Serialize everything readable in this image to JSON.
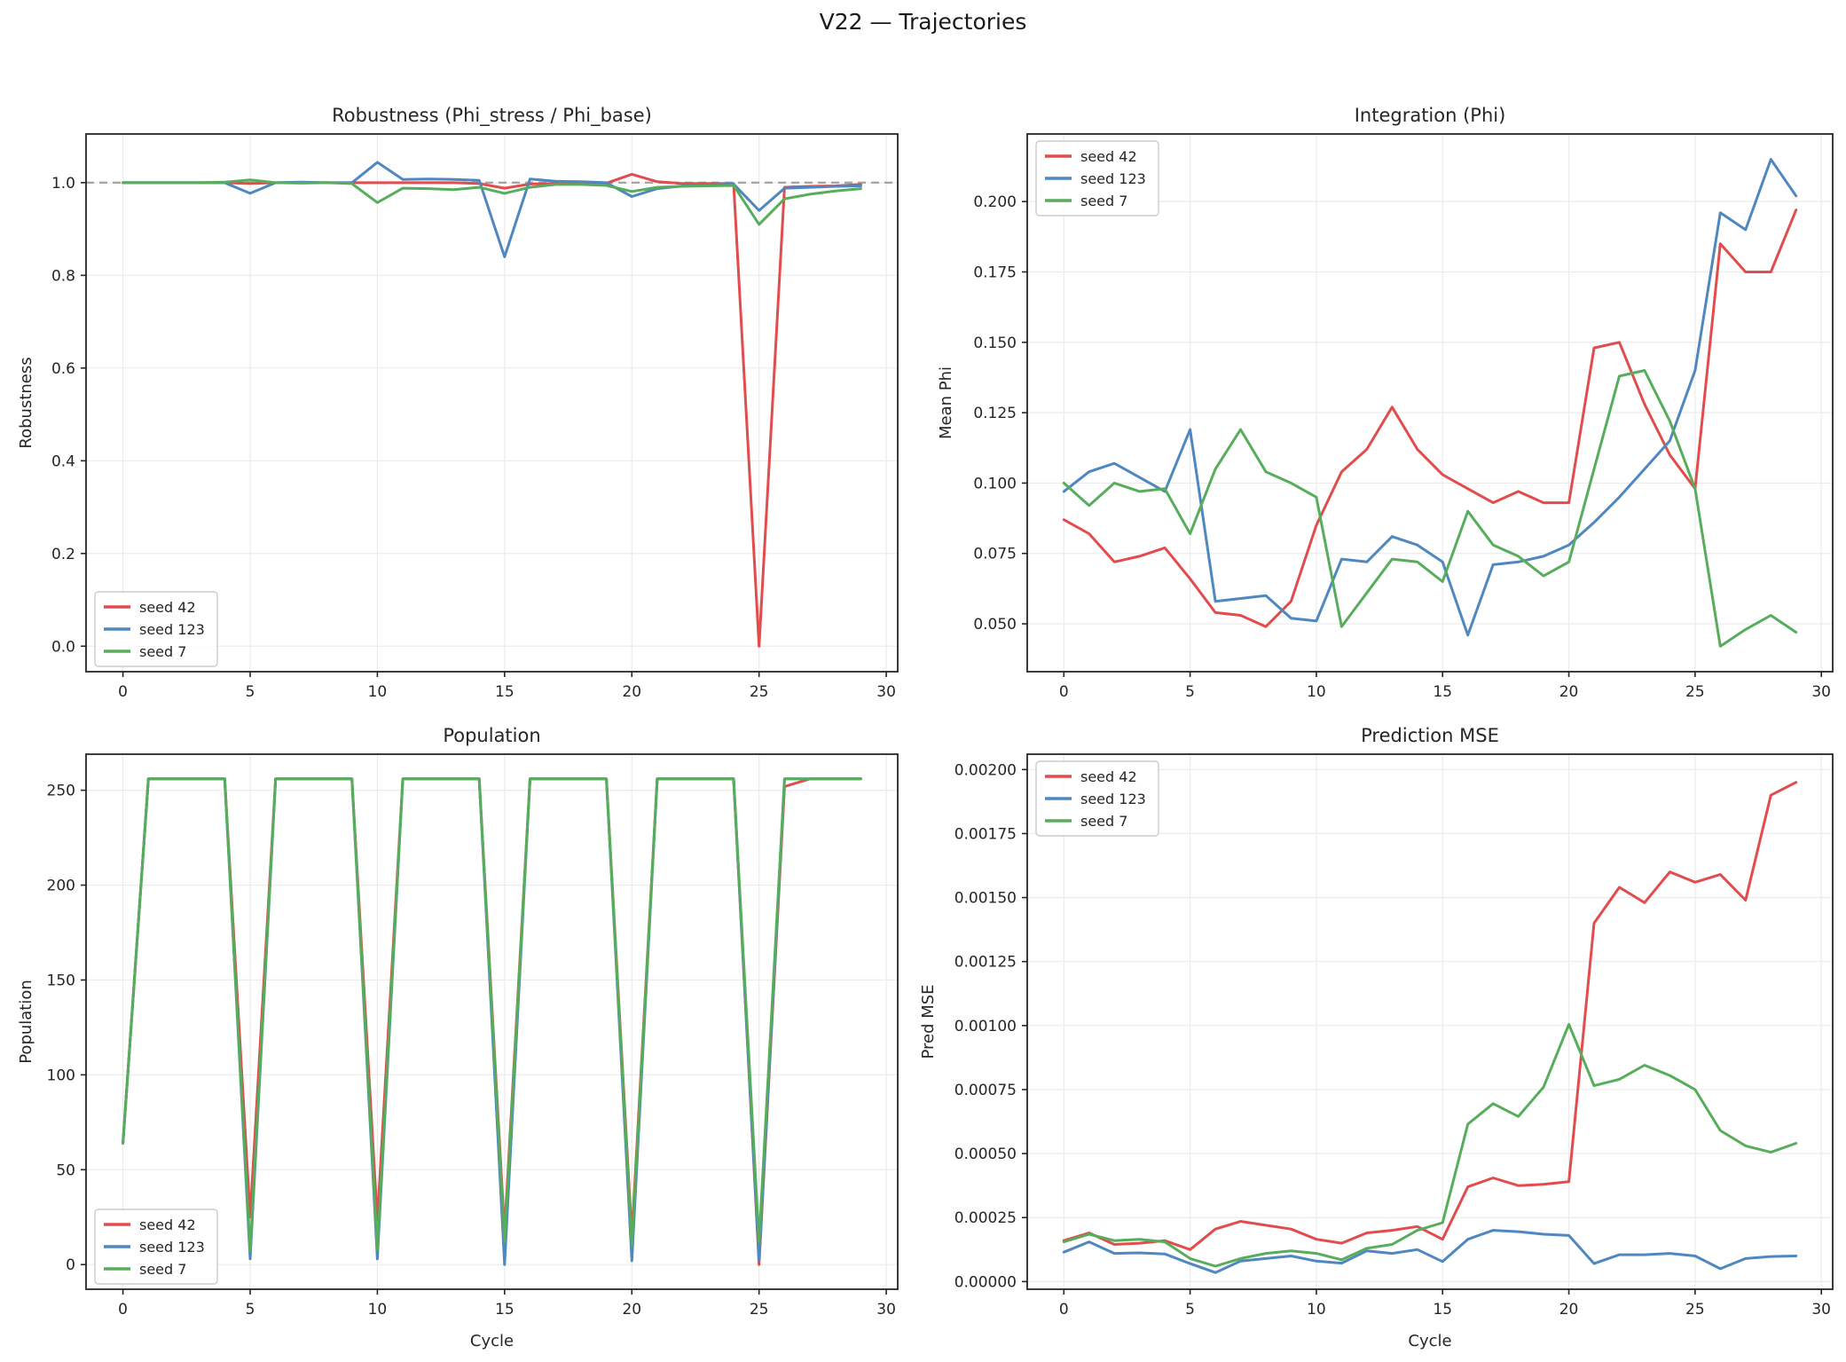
{
  "figure": {
    "title": "V22 — Trajectories"
  },
  "colors": {
    "series": [
      "#e24c4c",
      "#4f87c1",
      "#57ad5b"
    ],
    "ref_dashed": "#a6a6a6",
    "grid": "#ebebeb",
    "spine": "#262626",
    "tick": "#262626",
    "legend_border": "#cccccc"
  },
  "legend_labels": [
    "seed 42",
    "seed 123",
    "seed 7"
  ],
  "chart_data": [
    {
      "type": "line",
      "title": "Robustness (Phi_stress / Phi_base)",
      "xlabel": "",
      "ylabel": "Robustness",
      "x": [
        0,
        1,
        2,
        3,
        4,
        5,
        6,
        7,
        8,
        9,
        10,
        11,
        12,
        13,
        14,
        15,
        16,
        17,
        18,
        19,
        20,
        21,
        22,
        23,
        24,
        25,
        26,
        27,
        28,
        29
      ],
      "xticks": [
        0,
        5,
        10,
        15,
        20,
        25,
        30
      ],
      "xlim": [
        -1.45,
        30.45
      ],
      "yticks": [
        0.0,
        0.2,
        0.4,
        0.6,
        0.8,
        1.0
      ],
      "ytick_decimals": 1,
      "ylim": [
        -0.055,
        1.105
      ],
      "grid": true,
      "legend_position": "lower-left",
      "ref_line_y": 1.0,
      "series": [
        {
          "name": "seed 42",
          "values": [
            1.0,
            1.0,
            1.0,
            1.0,
            1.0,
            0.998,
            1.0,
            1.0,
            1.0,
            1.0,
            1.0,
            1.0,
            1.0,
            1.0,
            0.998,
            0.988,
            0.997,
            0.998,
            0.998,
            0.999,
            1.018,
            1.002,
            0.998,
            0.998,
            0.998,
            0.0,
            0.99,
            0.992,
            0.993,
            0.996
          ]
        },
        {
          "name": "seed 123",
          "values": [
            1.0,
            1.0,
            1.0,
            1.0,
            1.0,
            0.977,
            1.0,
            1.001,
            1.0,
            1.0,
            1.044,
            1.007,
            1.008,
            1.007,
            1.005,
            0.84,
            1.008,
            1.003,
            1.002,
            1.0,
            0.97,
            0.987,
            0.993,
            0.995,
            0.997,
            0.94,
            0.988,
            0.99,
            0.992,
            0.993
          ]
        },
        {
          "name": "seed 7",
          "values": [
            1.0,
            1.0,
            1.0,
            1.0,
            1.001,
            1.006,
            1.0,
            0.999,
            1.0,
            0.998,
            0.957,
            0.988,
            0.987,
            0.985,
            0.99,
            0.977,
            0.99,
            0.996,
            0.996,
            0.994,
            0.981,
            0.99,
            0.992,
            0.993,
            0.994,
            0.91,
            0.965,
            0.975,
            0.982,
            0.987
          ]
        }
      ]
    },
    {
      "type": "line",
      "title": "Integration (Phi)",
      "xlabel": "",
      "ylabel": "Mean Phi",
      "x": [
        0,
        1,
        2,
        3,
        4,
        5,
        6,
        7,
        8,
        9,
        10,
        11,
        12,
        13,
        14,
        15,
        16,
        17,
        18,
        19,
        20,
        21,
        22,
        23,
        24,
        25,
        26,
        27,
        28,
        29
      ],
      "xticks": [
        0,
        5,
        10,
        15,
        20,
        25,
        30
      ],
      "xlim": [
        -1.45,
        30.45
      ],
      "yticks": [
        0.05,
        0.075,
        0.1,
        0.125,
        0.15,
        0.175,
        0.2
      ],
      "ytick_decimals": 3,
      "ylim": [
        0.033,
        0.224
      ],
      "grid": true,
      "legend_position": "upper-left",
      "ref_line_y": null,
      "series": [
        {
          "name": "seed 42",
          "values": [
            0.087,
            0.082,
            0.072,
            0.074,
            0.077,
            0.066,
            0.054,
            0.053,
            0.049,
            0.058,
            0.085,
            0.104,
            0.112,
            0.127,
            0.112,
            0.103,
            0.098,
            0.093,
            0.097,
            0.093,
            0.093,
            0.148,
            0.15,
            0.128,
            0.11,
            0.098,
            0.185,
            0.175,
            0.175,
            0.197
          ]
        },
        {
          "name": "seed 123",
          "values": [
            0.097,
            0.104,
            0.107,
            0.102,
            0.097,
            0.119,
            0.058,
            0.059,
            0.06,
            0.052,
            0.051,
            0.073,
            0.072,
            0.081,
            0.078,
            0.072,
            0.046,
            0.071,
            0.072,
            0.074,
            0.078,
            0.086,
            0.095,
            0.105,
            0.115,
            0.14,
            0.196,
            0.19,
            0.215,
            0.202
          ]
        },
        {
          "name": "seed 7",
          "values": [
            0.1,
            0.092,
            0.1,
            0.097,
            0.098,
            0.082,
            0.105,
            0.119,
            0.104,
            0.1,
            0.095,
            0.049,
            0.061,
            0.073,
            0.072,
            0.065,
            0.09,
            0.078,
            0.074,
            0.067,
            0.072,
            0.105,
            0.138,
            0.14,
            0.122,
            0.098,
            0.042,
            0.048,
            0.053,
            0.047
          ]
        }
      ]
    },
    {
      "type": "line",
      "title": "Population",
      "xlabel": "Cycle",
      "ylabel": "Population",
      "x": [
        0,
        1,
        2,
        3,
        4,
        5,
        6,
        7,
        8,
        9,
        10,
        11,
        12,
        13,
        14,
        15,
        16,
        17,
        18,
        19,
        20,
        21,
        22,
        23,
        24,
        25,
        26,
        27,
        28,
        29
      ],
      "xticks": [
        0,
        5,
        10,
        15,
        20,
        25,
        30
      ],
      "xlim": [
        -1.45,
        30.45
      ],
      "yticks": [
        0,
        50,
        100,
        150,
        200,
        250
      ],
      "ytick_decimals": 0,
      "ylim": [
        -13,
        269
      ],
      "grid": true,
      "legend_position": "lower-left",
      "ref_line_y": null,
      "series": [
        {
          "name": "seed 42",
          "values": [
            64,
            256,
            256,
            256,
            256,
            25,
            256,
            256,
            256,
            256,
            23,
            256,
            256,
            256,
            256,
            17,
            256,
            256,
            256,
            256,
            15,
            256,
            256,
            256,
            256,
            0,
            252,
            256,
            256,
            256
          ]
        },
        {
          "name": "seed 123",
          "values": [
            64,
            256,
            256,
            256,
            256,
            3,
            256,
            256,
            256,
            256,
            3,
            256,
            256,
            256,
            256,
            0,
            256,
            256,
            256,
            256,
            2,
            256,
            256,
            256,
            256,
            2,
            256,
            256,
            256,
            256
          ]
        },
        {
          "name": "seed 7",
          "values": [
            64,
            256,
            256,
            256,
            256,
            7,
            256,
            256,
            256,
            256,
            8,
            256,
            256,
            256,
            256,
            12,
            256,
            256,
            256,
            256,
            10,
            256,
            256,
            256,
            256,
            12,
            256,
            256,
            256,
            256
          ]
        }
      ]
    },
    {
      "type": "line",
      "title": "Prediction MSE",
      "xlabel": "Cycle",
      "ylabel": "Pred MSE",
      "x": [
        0,
        1,
        2,
        3,
        4,
        5,
        6,
        7,
        8,
        9,
        10,
        11,
        12,
        13,
        14,
        15,
        16,
        17,
        18,
        19,
        20,
        21,
        22,
        23,
        24,
        25,
        26,
        27,
        28,
        29
      ],
      "xticks": [
        0,
        5,
        10,
        15,
        20,
        25,
        30
      ],
      "xlim": [
        -1.45,
        30.45
      ],
      "yticks": [
        0.0,
        0.00025,
        0.0005,
        0.00075,
        0.001,
        0.00125,
        0.0015,
        0.00175,
        0.002
      ],
      "ytick_decimals": 5,
      "ylim": [
        -3e-05,
        0.00206
      ],
      "grid": true,
      "legend_position": "upper-left",
      "ref_line_y": null,
      "series": [
        {
          "name": "seed 42",
          "values": [
            0.00016,
            0.00019,
            0.000145,
            0.00015,
            0.00016,
            0.000125,
            0.000205,
            0.000235,
            0.00022,
            0.000205,
            0.000165,
            0.00015,
            0.00019,
            0.0002,
            0.000215,
            0.000165,
            0.00037,
            0.000405,
            0.000375,
            0.00038,
            0.00039,
            0.0014,
            0.00154,
            0.00148,
            0.0016,
            0.00156,
            0.00159,
            0.00149,
            0.0019,
            0.00195
          ]
        },
        {
          "name": "seed 123",
          "values": [
            0.000115,
            0.000155,
            0.00011,
            0.000112,
            0.000108,
            7e-05,
            3.5e-05,
            8e-05,
            9e-05,
            0.0001,
            8e-05,
            7.2e-05,
            0.00012,
            0.00011,
            0.000125,
            7.8e-05,
            0.000165,
            0.0002,
            0.000195,
            0.000185,
            0.00018,
            7e-05,
            0.000105,
            0.000105,
            0.00011,
            0.0001,
            5e-05,
            9e-05,
            9.8e-05,
            0.0001
          ]
        },
        {
          "name": "seed 7",
          "values": [
            0.000155,
            0.000185,
            0.00016,
            0.000165,
            0.000155,
            9e-05,
            6e-05,
            9e-05,
            0.00011,
            0.00012,
            0.00011,
            8.5e-05,
            0.00013,
            0.000145,
            0.0002,
            0.00023,
            0.000615,
            0.000695,
            0.000645,
            0.00076,
            0.001005,
            0.000765,
            0.00079,
            0.000845,
            0.000805,
            0.00075,
            0.00059,
            0.00053,
            0.000505,
            0.00054
          ]
        }
      ]
    }
  ]
}
